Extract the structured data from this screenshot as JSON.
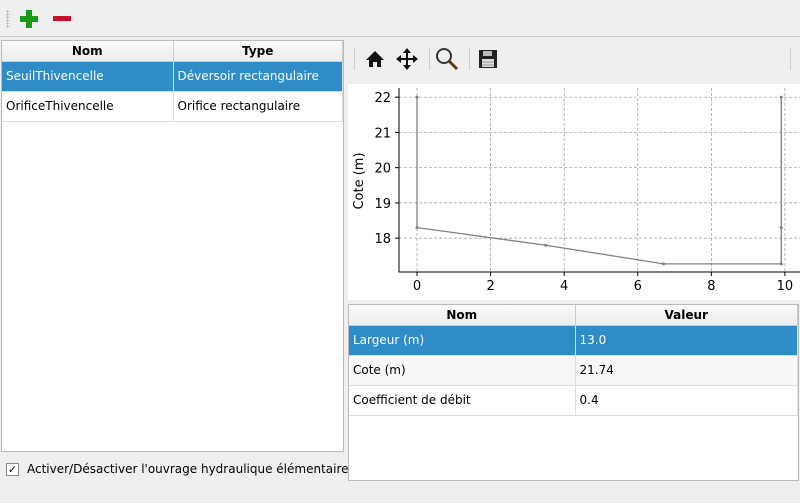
{
  "toolbar": {
    "add_icon": "plus-icon",
    "remove_icon": "minus-icon",
    "add_color": "#1a9a1a",
    "remove_color": "#c8102e"
  },
  "structures": {
    "headers": [
      "Nom",
      "Type"
    ],
    "rows": [
      [
        "SeuilThivencelle",
        "Déversoir rectangulaire"
      ],
      [
        "OrificeThivencelle",
        "Orifice rectangulaire"
      ]
    ],
    "selected": 0
  },
  "checkbox": {
    "label": "Activer/Désactiver l'ouvrage hydraulique élémentaire",
    "checked": true,
    "mark": "✓"
  },
  "plot_toolbar": {
    "icons": [
      "home-icon",
      "pan-icon",
      "zoom-icon",
      "save-icon"
    ]
  },
  "chart_data": {
    "type": "line",
    "ylabel": "Cote (m)",
    "xlabel": "",
    "x": [
      0,
      0,
      3.5,
      6.7,
      9.9,
      9.9,
      9.9
    ],
    "y": [
      22,
      18.3,
      17.8,
      17.27,
      17.27,
      18.3,
      22
    ],
    "xlim": [
      -0.49,
      10.41
    ],
    "ylim": [
      17.04,
      22.26
    ],
    "xticks": [
      0,
      2,
      4,
      6,
      8,
      10
    ],
    "yticks": [
      18,
      19,
      20,
      21,
      22
    ],
    "grid": true,
    "line_color": "#808080"
  },
  "params": {
    "headers": [
      "Nom",
      "Valeur"
    ],
    "rows": [
      [
        "Largeur (m)",
        "13.0"
      ],
      [
        "Cote (m)",
        "21.74"
      ],
      [
        "Coefficient de débit",
        "0.4"
      ]
    ],
    "selected": 0
  }
}
